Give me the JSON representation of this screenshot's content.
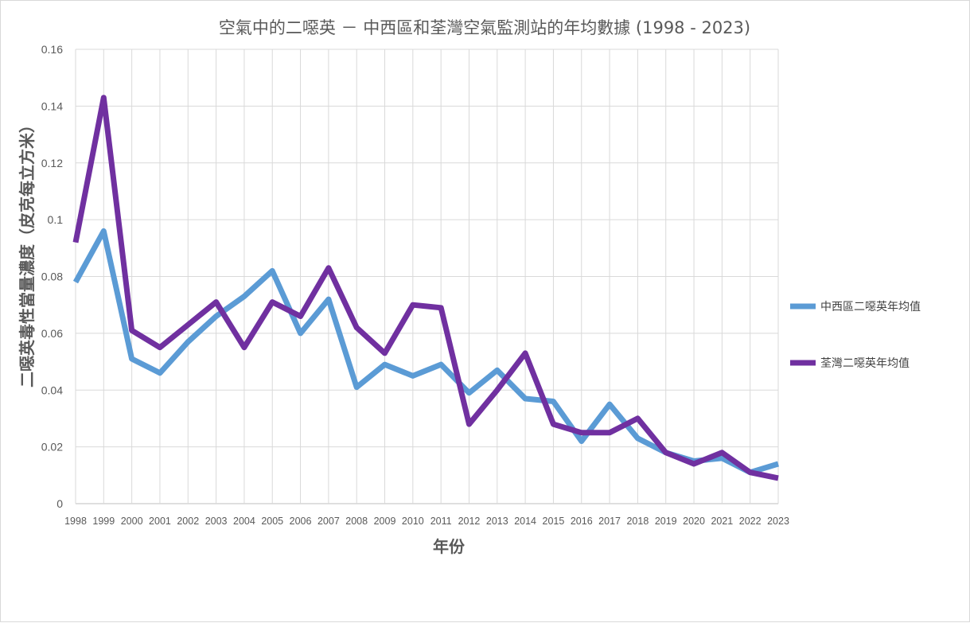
{
  "chart_data": {
    "type": "line",
    "title": "空氣中的二噁英 － 中西區和荃灣空氣監測站的年均數據 (1998 - 2023)",
    "xlabel": "年份",
    "ylabel": "二噁英毒性當量濃度（皮克每立方米）",
    "ylim": [
      0,
      0.16
    ],
    "yticks": [
      0,
      0.02,
      0.04,
      0.06,
      0.08,
      0.1,
      0.12,
      0.14,
      0.16
    ],
    "ytick_labels": [
      "0",
      "0.02",
      "0.04",
      "0.06",
      "0.08",
      "0.1",
      "0.12",
      "0.14",
      "0.16"
    ],
    "grid": true,
    "legend_position": "right",
    "categories": [
      "1998",
      "1999",
      "2000",
      "2001",
      "2002",
      "2003",
      "2004",
      "2005",
      "2006",
      "2007",
      "2008",
      "2009",
      "2010",
      "2011",
      "2012",
      "2013",
      "2014",
      "2015",
      "2016",
      "2017",
      "2018",
      "2019",
      "2020",
      "2021",
      "2022",
      "2023"
    ],
    "series": [
      {
        "name": "中西區二噁英年均值",
        "color": "#5b9bd5",
        "values": [
          0.078,
          0.096,
          0.051,
          0.046,
          0.057,
          0.066,
          0.073,
          0.082,
          0.06,
          0.072,
          0.041,
          0.049,
          0.045,
          0.049,
          0.039,
          0.047,
          0.037,
          0.036,
          0.022,
          0.035,
          0.023,
          0.018,
          0.015,
          0.016,
          0.011,
          0.014
        ]
      },
      {
        "name": "荃灣二噁英年均值",
        "color": "#7030a0",
        "values": [
          0.092,
          0.143,
          0.061,
          0.055,
          0.063,
          0.071,
          0.055,
          0.071,
          0.066,
          0.083,
          0.062,
          0.053,
          0.07,
          0.069,
          0.028,
          0.04,
          0.053,
          0.028,
          0.025,
          0.025,
          0.03,
          0.018,
          0.014,
          0.018,
          0.011,
          0.009
        ]
      }
    ]
  }
}
